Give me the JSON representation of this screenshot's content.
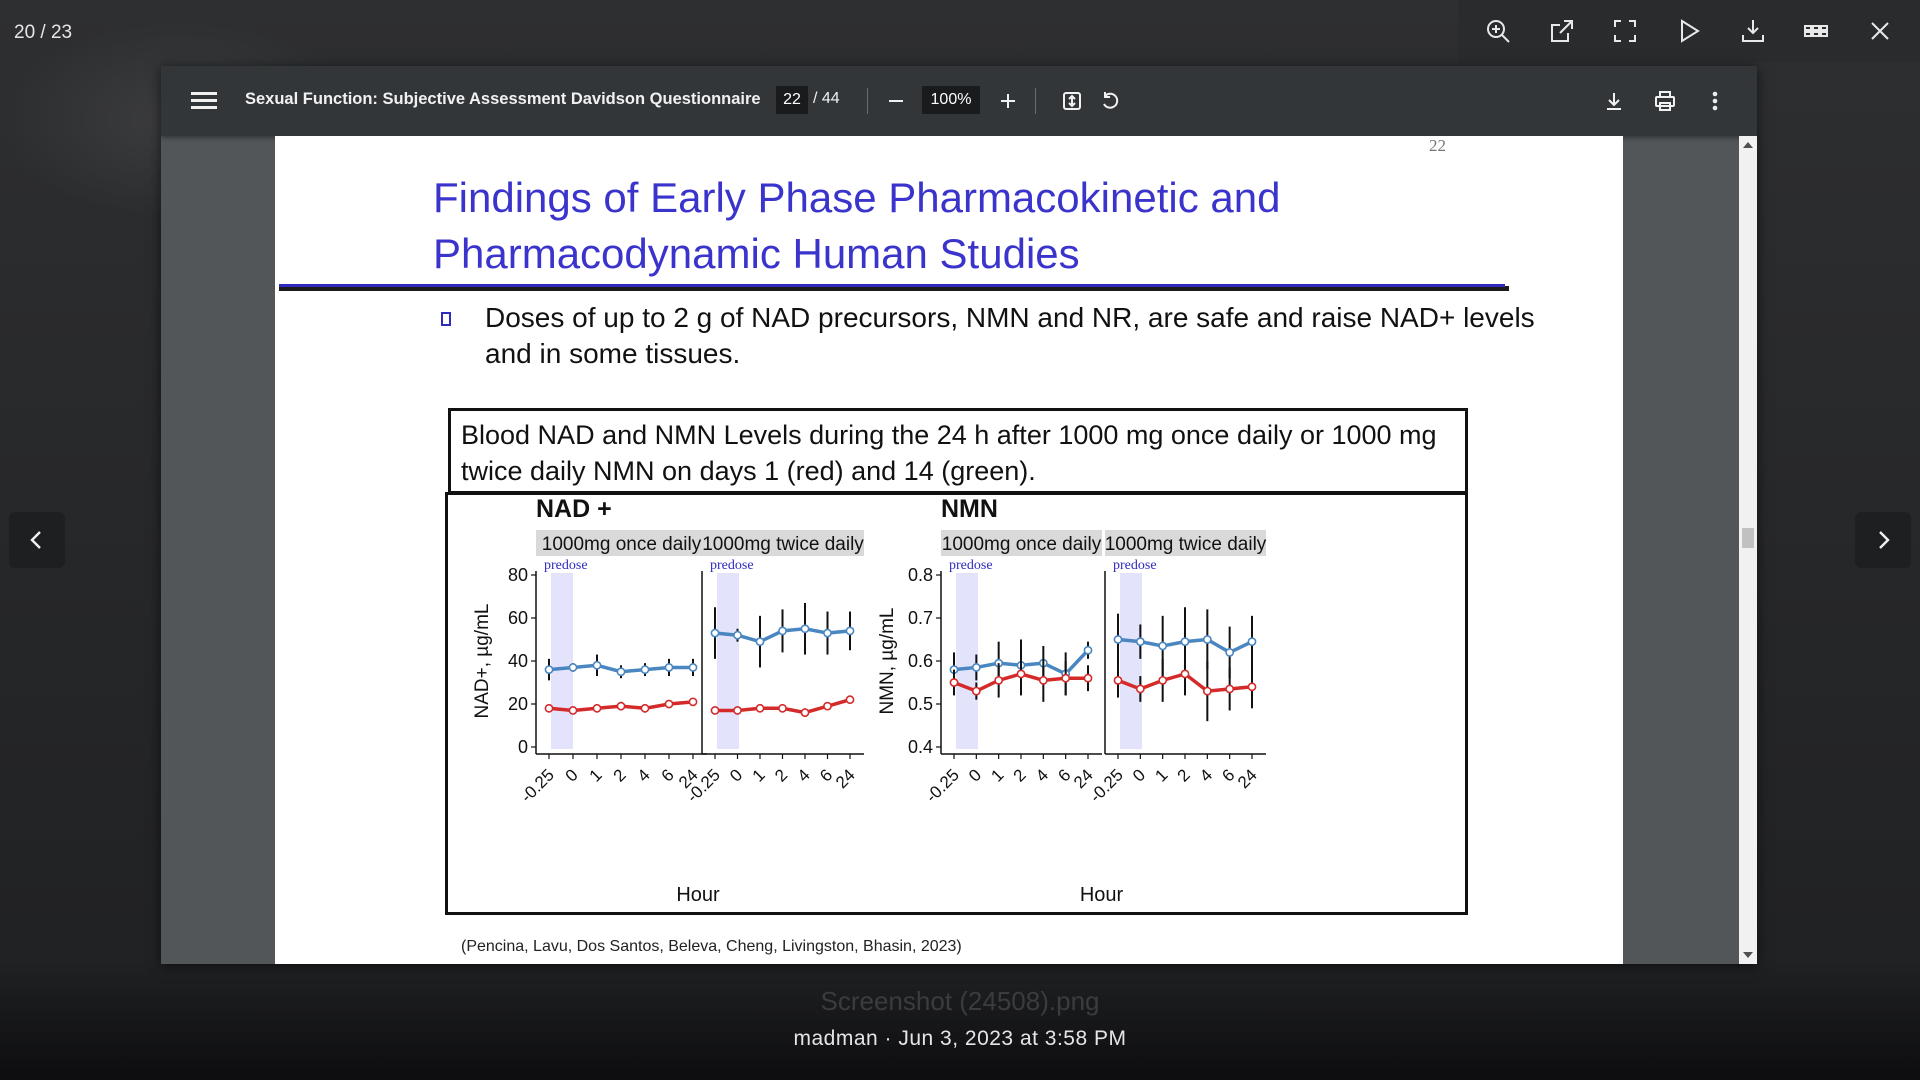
{
  "overlay": {
    "counter": "20 / 23",
    "tools": [
      {
        "name": "zoom-in-icon"
      },
      {
        "name": "open-external-icon"
      },
      {
        "name": "fullscreen-icon"
      },
      {
        "name": "play-icon"
      },
      {
        "name": "download-icon"
      },
      {
        "name": "grid-icon"
      },
      {
        "name": "close-icon"
      }
    ],
    "file_name": "Screenshot (24508).png",
    "meta": "madman · Jun 3, 2023 at 3:58 PM"
  },
  "pdf_toolbar": {
    "title": "Sexual Function: Subjective Assessment Davidson Questionnaire",
    "page_current": "22",
    "page_total": "/ 44",
    "zoom": "100%"
  },
  "slide": {
    "page_number": "22",
    "title": "Findings of Early Phase Pharmacokinetic and Pharmacodynamic Human Studies",
    "bullet": "Doses of up to 2 g of NAD precursors, NMN and NR, are safe and raise NAD+ levels and in some tissues.",
    "figure_caption": "Blood NAD and NMN Levels during the 24 h after 1000 mg once daily or 1000 mg twice daily NMN on days 1 (red) and 14 (green).",
    "citation": "(Pencina, Lavu, Dos Santos, Beleva, Cheng, Livingston, Bhasin, 2023)"
  },
  "chart_data": [
    {
      "type": "line",
      "group_title": "NAD +",
      "title": "1000mg once daily",
      "annotation": "predose",
      "ylabel": "NAD+, µg/mL",
      "xlabel": "Hour",
      "categories": [
        "-0.25",
        "0",
        "1",
        "2",
        "4",
        "6",
        "24"
      ],
      "ylim": [
        0,
        80
      ],
      "yticks": [
        "0",
        "20",
        "40",
        "60",
        "80"
      ],
      "series": [
        {
          "color": "#4a86c0",
          "values": [
            36,
            37,
            38,
            35,
            36,
            37,
            37
          ],
          "err": [
            5,
            2,
            5,
            3,
            3,
            4,
            4
          ]
        },
        {
          "color": "#d42a2a",
          "values": [
            18,
            17,
            18,
            19,
            18,
            20,
            21
          ],
          "err": [
            0,
            0,
            0,
            2,
            2,
            0,
            0
          ]
        }
      ]
    },
    {
      "type": "line",
      "title": "1000mg twice daily",
      "annotation": "predose",
      "categories": [
        "-0.25",
        "0",
        "1",
        "2",
        "4",
        "6",
        "24"
      ],
      "ylim": [
        0,
        80
      ],
      "series": [
        {
          "color": "#4a86c0",
          "values": [
            53,
            52,
            49,
            54,
            55,
            53,
            54
          ],
          "err": [
            12,
            3,
            12,
            10,
            12,
            10,
            9
          ]
        },
        {
          "color": "#d42a2a",
          "values": [
            17,
            17,
            18,
            18,
            16,
            19,
            22
          ],
          "err": [
            0,
            0,
            0,
            0,
            2,
            0,
            0
          ]
        }
      ]
    },
    {
      "type": "line",
      "group_title": "NMN",
      "title": "1000mg once daily",
      "annotation": "predose",
      "ylabel": "NMN, µg/mL",
      "xlabel": "Hour",
      "categories": [
        "-0.25",
        "0",
        "1",
        "2",
        "4",
        "6",
        "24"
      ],
      "ylim": [
        0.4,
        0.8
      ],
      "yticks": [
        "0.4",
        "0.5",
        "0.6",
        "0.7",
        "0.8"
      ],
      "series": [
        {
          "color": "#4a86c0",
          "values": [
            0.58,
            0.585,
            0.595,
            0.59,
            0.595,
            0.57,
            0.625
          ],
          "err": [
            0.04,
            0.03,
            0.05,
            0.06,
            0.04,
            0.05,
            0.02
          ]
        },
        {
          "color": "#d42a2a",
          "values": [
            0.55,
            0.53,
            0.555,
            0.57,
            0.555,
            0.56,
            0.56
          ],
          "err": [
            0.03,
            0.02,
            0.04,
            0.05,
            0.05,
            0.04,
            0.03
          ]
        }
      ]
    },
    {
      "type": "line",
      "title": "1000mg twice daily",
      "annotation": "predose",
      "categories": [
        "-0.25",
        "0",
        "1",
        "2",
        "4",
        "6",
        "24"
      ],
      "ylim": [
        0.4,
        0.8
      ],
      "series": [
        {
          "color": "#4a86c0",
          "values": [
            0.65,
            0.645,
            0.635,
            0.645,
            0.65,
            0.62,
            0.645
          ],
          "err": [
            0.06,
            0.04,
            0.07,
            0.08,
            0.07,
            0.06,
            0.06
          ]
        },
        {
          "color": "#d42a2a",
          "values": [
            0.555,
            0.535,
            0.555,
            0.57,
            0.53,
            0.535,
            0.54
          ],
          "err": [
            0.04,
            0.03,
            0.05,
            0.05,
            0.07,
            0.05,
            0.05
          ]
        }
      ]
    }
  ]
}
